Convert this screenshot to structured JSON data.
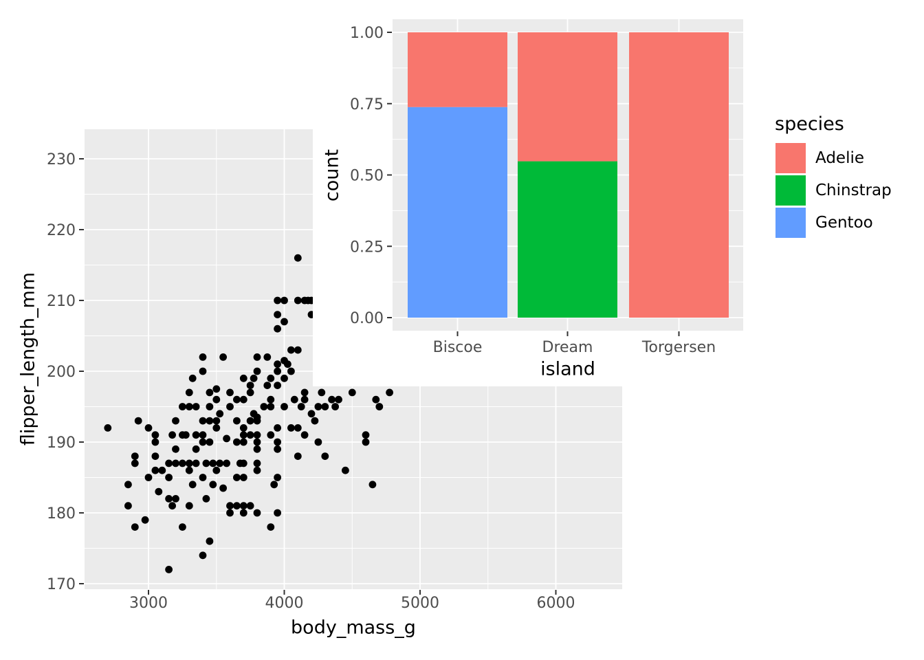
{
  "figure": {
    "description": "Penguin scatter plot with inset stacked proportion bar chart"
  },
  "colors": {
    "adelie": "#F8766D",
    "chinstrap": "#00BA38",
    "gentoo": "#619CFF",
    "panel_bg": "#EBEBEB",
    "grid": "#FFFFFF",
    "tick_text": "#4D4D4D",
    "axis_tick": "#333333",
    "point": "#000000"
  },
  "legend": {
    "title": "species",
    "items": [
      {
        "label": "Adelie",
        "color_key": "adelie"
      },
      {
        "label": "Chinstrap",
        "color_key": "chinstrap"
      },
      {
        "label": "Gentoo",
        "color_key": "gentoo"
      }
    ]
  },
  "chart_data": [
    {
      "type": "scatter",
      "xlabel": "body_mass_g",
      "ylabel": "flipper_length_mm",
      "xlim": [
        2530,
        6490
      ],
      "ylim": [
        169.6,
        234.5
      ],
      "x_ticks": [
        3000,
        4000,
        5000,
        6000
      ],
      "x_tick_labels": [
        "3000",
        "4000",
        "5000",
        "6000"
      ],
      "x_minor_ticks": [
        3500,
        4500,
        5500
      ],
      "y_ticks": [
        170,
        180,
        190,
        200,
        210,
        220,
        230
      ],
      "y_tick_labels": [
        "170",
        "180",
        "190",
        "200",
        "210",
        "220",
        "230"
      ],
      "y_minor_ticks": [
        175,
        185,
        195,
        205,
        215,
        225
      ],
      "grid": true,
      "note": "points are [body_mass_g, flipper_length_mm]; upper-right points are hidden behind the inset chart",
      "points": [
        [
          3300,
          197
        ],
        [
          3450,
          197
        ],
        [
          3500,
          197.5
        ],
        [
          3500,
          196
        ],
        [
          3600,
          197
        ],
        [
          3250,
          195
        ],
        [
          3300,
          195
        ],
        [
          3350,
          195
        ],
        [
          3450,
          195
        ],
        [
          3525,
          194
        ],
        [
          3600,
          195
        ],
        [
          2925,
          193
        ],
        [
          3200,
          193
        ],
        [
          3400,
          193
        ],
        [
          3450,
          193
        ],
        [
          3500,
          193
        ],
        [
          2700,
          192
        ],
        [
          3000,
          192
        ],
        [
          3500,
          192
        ],
        [
          3050,
          191
        ],
        [
          3175,
          191
        ],
        [
          3250,
          191
        ],
        [
          3275,
          191
        ],
        [
          3350,
          191
        ],
        [
          3400,
          191
        ],
        [
          3450,
          190
        ],
        [
          3575,
          190.5
        ],
        [
          3050,
          190
        ],
        [
          3400,
          190
        ],
        [
          3200,
          189
        ],
        [
          3350,
          189
        ],
        [
          2900,
          188
        ],
        [
          3050,
          188
        ],
        [
          2900,
          187
        ],
        [
          3150,
          187
        ],
        [
          3200,
          187
        ],
        [
          3250,
          187
        ],
        [
          3300,
          187
        ],
        [
          3350,
          187
        ],
        [
          3425,
          187
        ],
        [
          3475,
          187
        ],
        [
          3525,
          187
        ],
        [
          3575,
          187
        ],
        [
          3050,
          186
        ],
        [
          3100,
          186
        ],
        [
          3300,
          186
        ],
        [
          3500,
          186
        ],
        [
          3000,
          185
        ],
        [
          3150,
          185
        ],
        [
          3400,
          185
        ],
        [
          2850,
          184
        ],
        [
          3325,
          184
        ],
        [
          3475,
          184
        ],
        [
          3550,
          183.5
        ],
        [
          3075,
          183
        ],
        [
          3425,
          182
        ],
        [
          3150,
          182
        ],
        [
          3200,
          182
        ],
        [
          3175,
          181
        ],
        [
          3300,
          181
        ],
        [
          2850,
          181
        ],
        [
          3600,
          181
        ],
        [
          3600,
          180
        ],
        [
          2975,
          179
        ],
        [
          2900,
          178
        ],
        [
          3250,
          178
        ],
        [
          3450,
          176
        ],
        [
          3400,
          174
        ],
        [
          3150,
          172
        ],
        [
          3750,
          197
        ],
        [
          3700,
          196
        ],
        [
          3900,
          196
        ],
        [
          4075,
          196
        ],
        [
          4150,
          197
        ],
        [
          4150,
          196
        ],
        [
          4275,
          197
        ],
        [
          4350,
          196
        ],
        [
          4400,
          196
        ],
        [
          4500,
          197
        ],
        [
          4675,
          196
        ],
        [
          4700,
          195
        ],
        [
          4775,
          197
        ],
        [
          3850,
          195
        ],
        [
          3900,
          195
        ],
        [
          4000,
          195
        ],
        [
          4125,
          195
        ],
        [
          4250,
          195
        ],
        [
          4300,
          195
        ],
        [
          4375,
          195
        ],
        [
          3775,
          194
        ],
        [
          3800,
          193.5
        ],
        [
          3750,
          193
        ],
        [
          3800,
          193
        ],
        [
          3650,
          193
        ],
        [
          4200,
          194
        ],
        [
          4225,
          193
        ],
        [
          3650,
          196
        ],
        [
          3950,
          192
        ],
        [
          4050,
          192
        ],
        [
          4100,
          192
        ],
        [
          3700,
          192
        ],
        [
          3700,
          191
        ],
        [
          3750,
          191
        ],
        [
          4150,
          191
        ],
        [
          4600,
          191
        ],
        [
          4600,
          190
        ],
        [
          3800,
          191
        ],
        [
          3800,
          190
        ],
        [
          3900,
          191
        ],
        [
          3650,
          190
        ],
        [
          3700,
          190
        ],
        [
          3800,
          189
        ],
        [
          3950,
          190
        ],
        [
          3950,
          189
        ],
        [
          4250,
          190
        ],
        [
          4100,
          188
        ],
        [
          4300,
          188
        ],
        [
          4450,
          186
        ],
        [
          3675,
          187
        ],
        [
          3700,
          187
        ],
        [
          3800,
          187
        ],
        [
          3800,
          186
        ],
        [
          3650,
          185
        ],
        [
          3700,
          185
        ],
        [
          3950,
          185
        ],
        [
          3925,
          184
        ],
        [
          4650,
          184
        ],
        [
          3700,
          181
        ],
        [
          3750,
          181
        ],
        [
          3650,
          181
        ],
        [
          3800,
          180
        ],
        [
          3700,
          180
        ],
        [
          3950,
          180
        ],
        [
          3900,
          178
        ],
        [
          3400,
          202
        ],
        [
          3550,
          202
        ],
        [
          3400,
          200
        ],
        [
          3325,
          199
        ],
        [
          4100,
          216
        ],
        [
          3950,
          210
        ],
        [
          4000,
          210
        ],
        [
          4100,
          210
        ],
        [
          4150,
          210
        ],
        [
          4175,
          210
        ],
        [
          4200,
          210
        ],
        [
          3950,
          208
        ],
        [
          4200,
          208
        ],
        [
          4000,
          207
        ],
        [
          3950,
          206
        ],
        [
          4050,
          203
        ],
        [
          4100,
          203
        ],
        [
          3800,
          202
        ],
        [
          3875,
          202
        ],
        [
          3950,
          201
        ],
        [
          4000,
          201.5
        ],
        [
          4025,
          201
        ],
        [
          3800,
          200
        ],
        [
          3950,
          200
        ],
        [
          4050,
          200
        ],
        [
          3775,
          199
        ],
        [
          3900,
          199
        ],
        [
          4000,
          199
        ],
        [
          3700,
          199
        ],
        [
          3950,
          198
        ],
        [
          3875,
          198
        ],
        [
          3750,
          198
        ]
      ]
    },
    {
      "type": "bar",
      "stacked": true,
      "position": "fill",
      "xlabel": "island",
      "ylabel": "count",
      "categories": [
        "Biscoe",
        "Dream",
        "Torgersen"
      ],
      "series": [
        {
          "name": "Adelie",
          "values": [
            0.262,
            0.452,
            1.0
          ]
        },
        {
          "name": "Chinstrap",
          "values": [
            0.0,
            0.548,
            0.0
          ]
        },
        {
          "name": "Gentoo",
          "values": [
            0.738,
            0.0,
            0.0
          ]
        }
      ],
      "stack_order_bottom_to_top": [
        "Gentoo",
        "Chinstrap",
        "Adelie"
      ],
      "ylim": [
        0,
        1
      ],
      "y_ticks": [
        0,
        0.25,
        0.5,
        0.75,
        1.0
      ],
      "y_tick_labels": [
        "0.00",
        "0.25",
        "0.50",
        "0.75",
        "1.00"
      ],
      "y_minor_ticks": [
        0.125,
        0.375,
        0.625,
        0.875
      ],
      "grid": true,
      "legend_position": "right"
    }
  ]
}
